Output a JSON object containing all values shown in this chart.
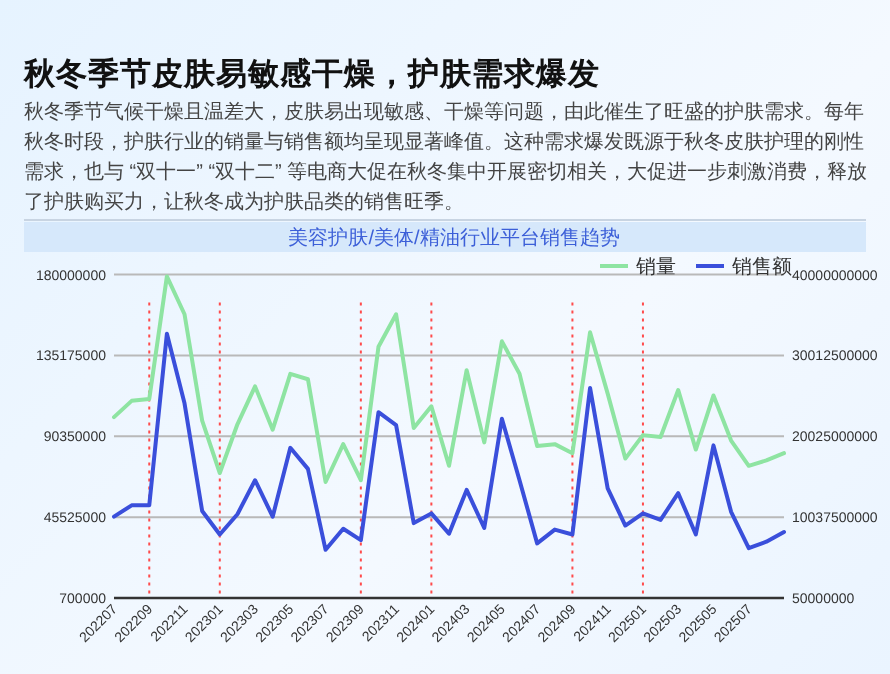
{
  "chart_data": {
    "type": "line",
    "title": "秋冬季节皮肤易敏感干燥，护肤需求爆发",
    "subtitle": "秋冬季节气候干燥且温差大，皮肤易出现敏感、干燥等问题，由此催生了旺盛的护肤需求。每年秋冬时段，护肤行业的销量与销售额均呈现显著峰值。这种需求爆发既源于秋冬皮肤护理的刚性需求，也与 “双十一” “双十二” 等电商大促在秋冬集中开展密切相关，大促进一步刺激消费，释放了护肤购买力，让秋冬成为护肤品类的销售旺季。",
    "annotations": [
      "美容护肤/美体/精油行业平台销售趋势"
    ],
    "categories": [
      "202207",
      null,
      "202209",
      null,
      "202211",
      null,
      "202301",
      null,
      "202303",
      null,
      "202305",
      null,
      "202307",
      null,
      "202309",
      null,
      "202311",
      null,
      "202401",
      null,
      "202403",
      null,
      "202405",
      null,
      "202407",
      null,
      "202409",
      null,
      "202411",
      null,
      "202501",
      null,
      "202503",
      null,
      "202505",
      null,
      "202507",
      null,
      null
    ],
    "series": [
      {
        "name": "销量",
        "color": "#8ee4a2",
        "axis": "y",
        "values": [
          101000000,
          110000000,
          111000000,
          179000000,
          158000000,
          99000000,
          70000000,
          97000000,
          118000000,
          94000000,
          125000000,
          122000000,
          65000000,
          86000000,
          66000000,
          140000000,
          158000000,
          95000000,
          107000000,
          74000000,
          127000000,
          87000000,
          143000000,
          125000000,
          85000000,
          86000000,
          81000000,
          148000000,
          114000000,
          78000000,
          91000000,
          90000000,
          116000000,
          83000000,
          113000000,
          88000000,
          74000000,
          77000000,
          81000000
        ]
      },
      {
        "name": "销售额",
        "color": "#3a4fdb",
        "axis": "y2",
        "values": [
          10100000000,
          11500000000,
          11500000000,
          32700000000,
          24100000000,
          10800000000,
          7900000000,
          10400000000,
          14600000000,
          10100000000,
          18600000000,
          16000000000,
          6000000000,
          8600000000,
          7200000000,
          23000000000,
          21400000000,
          9300000000,
          10500000000,
          8000000000,
          13400000000,
          8700000000,
          22200000000,
          14600000000,
          6800000000,
          8500000000,
          7900000000,
          26000000000,
          13600000000,
          9000000000,
          10500000000,
          9700000000,
          13000000000,
          7900000000,
          18900000000,
          10700000000,
          6200000000,
          7000000000,
          8200000000
        ]
      }
    ],
    "ylim": [
      700000,
      180000000
    ],
    "yticks": [
      700000,
      45525000,
      90350000,
      135175000,
      180000000
    ],
    "y2lim": [
      50000000,
      40000000000
    ],
    "y2ticks": [
      50000000,
      10037500000,
      20025000000,
      30012500000,
      40000000000
    ],
    "ref_lines": [
      {
        "axis": "x",
        "value": "202209",
        "color": "#ff4b4b",
        "line_style": "dotted"
      },
      {
        "axis": "x",
        "value": "202301",
        "color": "#ff4b4b",
        "line_style": "dotted"
      },
      {
        "axis": "x",
        "value": "202309",
        "color": "#ff4b4b",
        "line_style": "dotted"
      },
      {
        "axis": "x",
        "value": "202401",
        "color": "#ff4b4b",
        "line_style": "dotted"
      },
      {
        "axis": "x",
        "value": "202409",
        "color": "#ff4b4b",
        "line_style": "dotted"
      },
      {
        "axis": "x",
        "value": "202501",
        "color": "#ff4b4b",
        "line_style": "dotted"
      }
    ],
    "grid": "y",
    "legend": "top right",
    "marker": "none",
    "line_style": "solid"
  }
}
